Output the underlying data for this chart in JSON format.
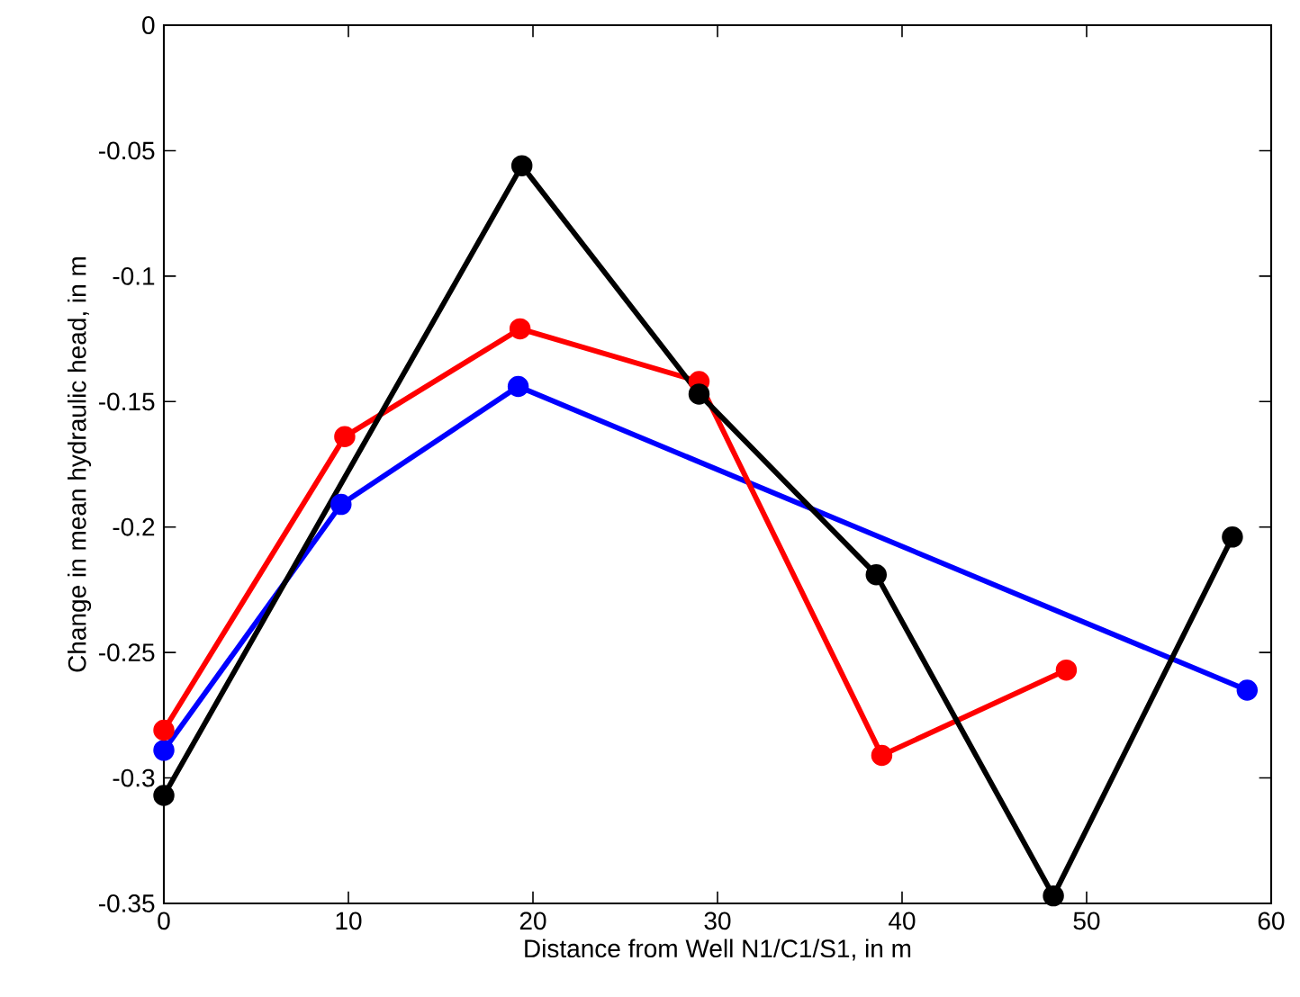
{
  "chart_data": {
    "type": "line",
    "xlabel": "Distance from Well N1/C1/S1, in m",
    "ylabel": "Change in mean hydraulic head, in m",
    "xlim": [
      0,
      60
    ],
    "ylim": [
      -0.35,
      0
    ],
    "xticks": [
      0,
      10,
      20,
      30,
      40,
      50,
      60
    ],
    "yticks": [
      -0.35,
      -0.3,
      -0.25,
      -0.2,
      -0.15,
      -0.1,
      -0.05,
      0
    ],
    "marker": "circle",
    "line_style": "solid",
    "series": [
      {
        "color": "#0000ff",
        "x": [
          0,
          9.6,
          19.2,
          58.7
        ],
        "values": [
          -0.289,
          -0.191,
          -0.144,
          -0.265
        ]
      },
      {
        "color": "#ff0000",
        "x": [
          0,
          9.8,
          19.3,
          29.0,
          38.9,
          48.9
        ],
        "values": [
          -0.281,
          -0.164,
          -0.121,
          -0.142,
          -0.291,
          -0.257
        ]
      },
      {
        "color": "#000000",
        "x": [
          0,
          19.4,
          29.0,
          38.6,
          48.2,
          57.9
        ],
        "values": [
          -0.307,
          -0.056,
          -0.147,
          -0.219,
          -0.347,
          -0.204
        ]
      }
    ]
  }
}
